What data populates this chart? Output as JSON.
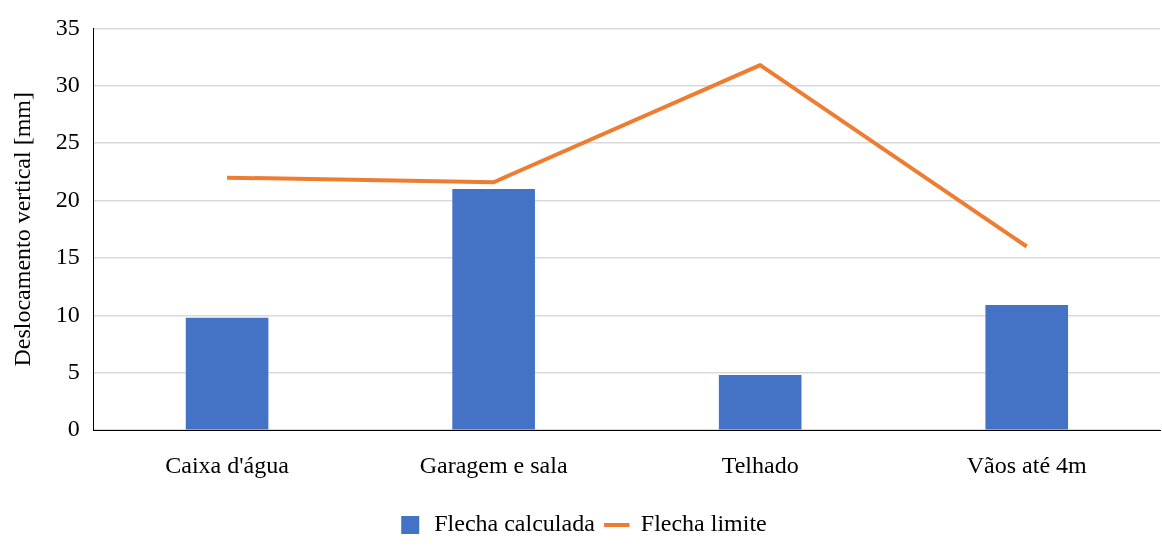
{
  "chart_data": {
    "type": "bar",
    "ylabel": "Deslocamento vertical [mm]",
    "categories": [
      "Caixa d'água",
      "Garagem e sala",
      "Telhado",
      "Vãos até 4m"
    ],
    "series": [
      {
        "name": "Flecha calculada",
        "type": "bar",
        "color": "#4472c4",
        "values": [
          9.8,
          21.0,
          4.8,
          10.9
        ]
      },
      {
        "name": "Flecha limite",
        "type": "line",
        "color": "#ed7d31",
        "values": [
          22.0,
          21.6,
          31.8,
          16.0
        ]
      }
    ],
    "ylim": [
      0,
      35
    ],
    "yticks": [
      0,
      5,
      10,
      15,
      20,
      25,
      30,
      35
    ],
    "grid": "y",
    "legend": "bottom",
    "marker": "none"
  }
}
